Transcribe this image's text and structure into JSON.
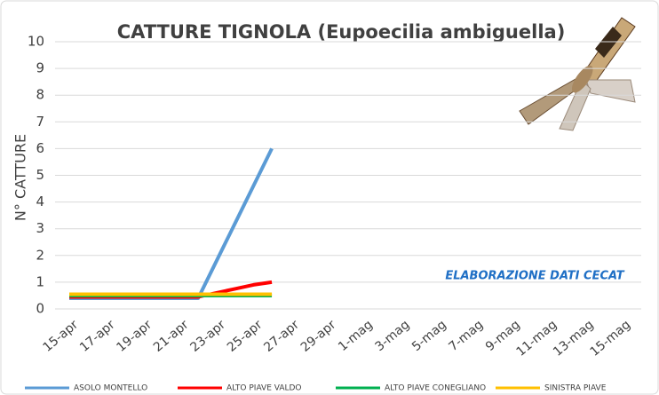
{
  "chart_data": {
    "type": "line",
    "title": "CATTURE TIGNOLA (Eupoecilia ambiguella)",
    "y_label": "N° CATTURE",
    "annotation": "ELABORAZIONE DATI CECAT",
    "categories": [
      "15-apr",
      null,
      "17-apr",
      null,
      "19-apr",
      null,
      "21-apr",
      null,
      "23-apr",
      null,
      "25-apr",
      null,
      "27-apr",
      null,
      "29-apr",
      null,
      "1-mag",
      null,
      "3-mag",
      null,
      "5-mag",
      null,
      "7-mag",
      null,
      "9-mag",
      null,
      "11-mag",
      null,
      "13-mag",
      null,
      "15-mag"
    ],
    "series": [
      {
        "name": "ASOLO MONTELLO",
        "color": "#5b9bd5",
        "values": [
          0.4,
          0.4,
          0.4,
          0.4,
          0.4,
          0.4,
          0.4,
          0.4,
          1.8,
          3.2,
          4.6,
          6,
          null,
          null,
          null,
          null,
          null,
          null,
          null,
          null,
          null,
          null,
          null,
          null,
          null,
          null,
          null,
          null,
          null,
          null,
          null
        ]
      },
      {
        "name": "ALTO PIAVE VALDO",
        "color": "#ff0000",
        "values": [
          0.45,
          0.45,
          0.45,
          0.45,
          0.45,
          0.45,
          0.45,
          0.45,
          0.6,
          0.75,
          0.9,
          1,
          null,
          null,
          null,
          null,
          null,
          null,
          null,
          null,
          null,
          null,
          null,
          null,
          null,
          null,
          null,
          null,
          null,
          null,
          null
        ]
      },
      {
        "name": "ALTO PIAVE CONEGLIANO",
        "color": "#00b050",
        "values": [
          0.5,
          0.5,
          0.5,
          0.5,
          0.5,
          0.5,
          0.5,
          0.5,
          0.5,
          0.5,
          0.5,
          0.5,
          null,
          null,
          null,
          null,
          null,
          null,
          null,
          null,
          null,
          null,
          null,
          null,
          null,
          null,
          null,
          null,
          null,
          null,
          null
        ]
      },
      {
        "name": "SINISTRA PIAVE",
        "color": "#ffc000",
        "values": [
          0.55,
          0.55,
          0.55,
          0.55,
          0.55,
          0.55,
          0.55,
          0.55,
          0.55,
          0.55,
          0.55,
          0.55,
          null,
          null,
          null,
          null,
          null,
          null,
          null,
          null,
          null,
          null,
          null,
          null,
          null,
          null,
          null,
          null,
          null,
          null,
          null
        ]
      }
    ],
    "ylim": [
      0,
      10
    ],
    "yticks": [
      0,
      1,
      2,
      3,
      4,
      5,
      6,
      7,
      8,
      9,
      10
    ],
    "grid": true
  }
}
